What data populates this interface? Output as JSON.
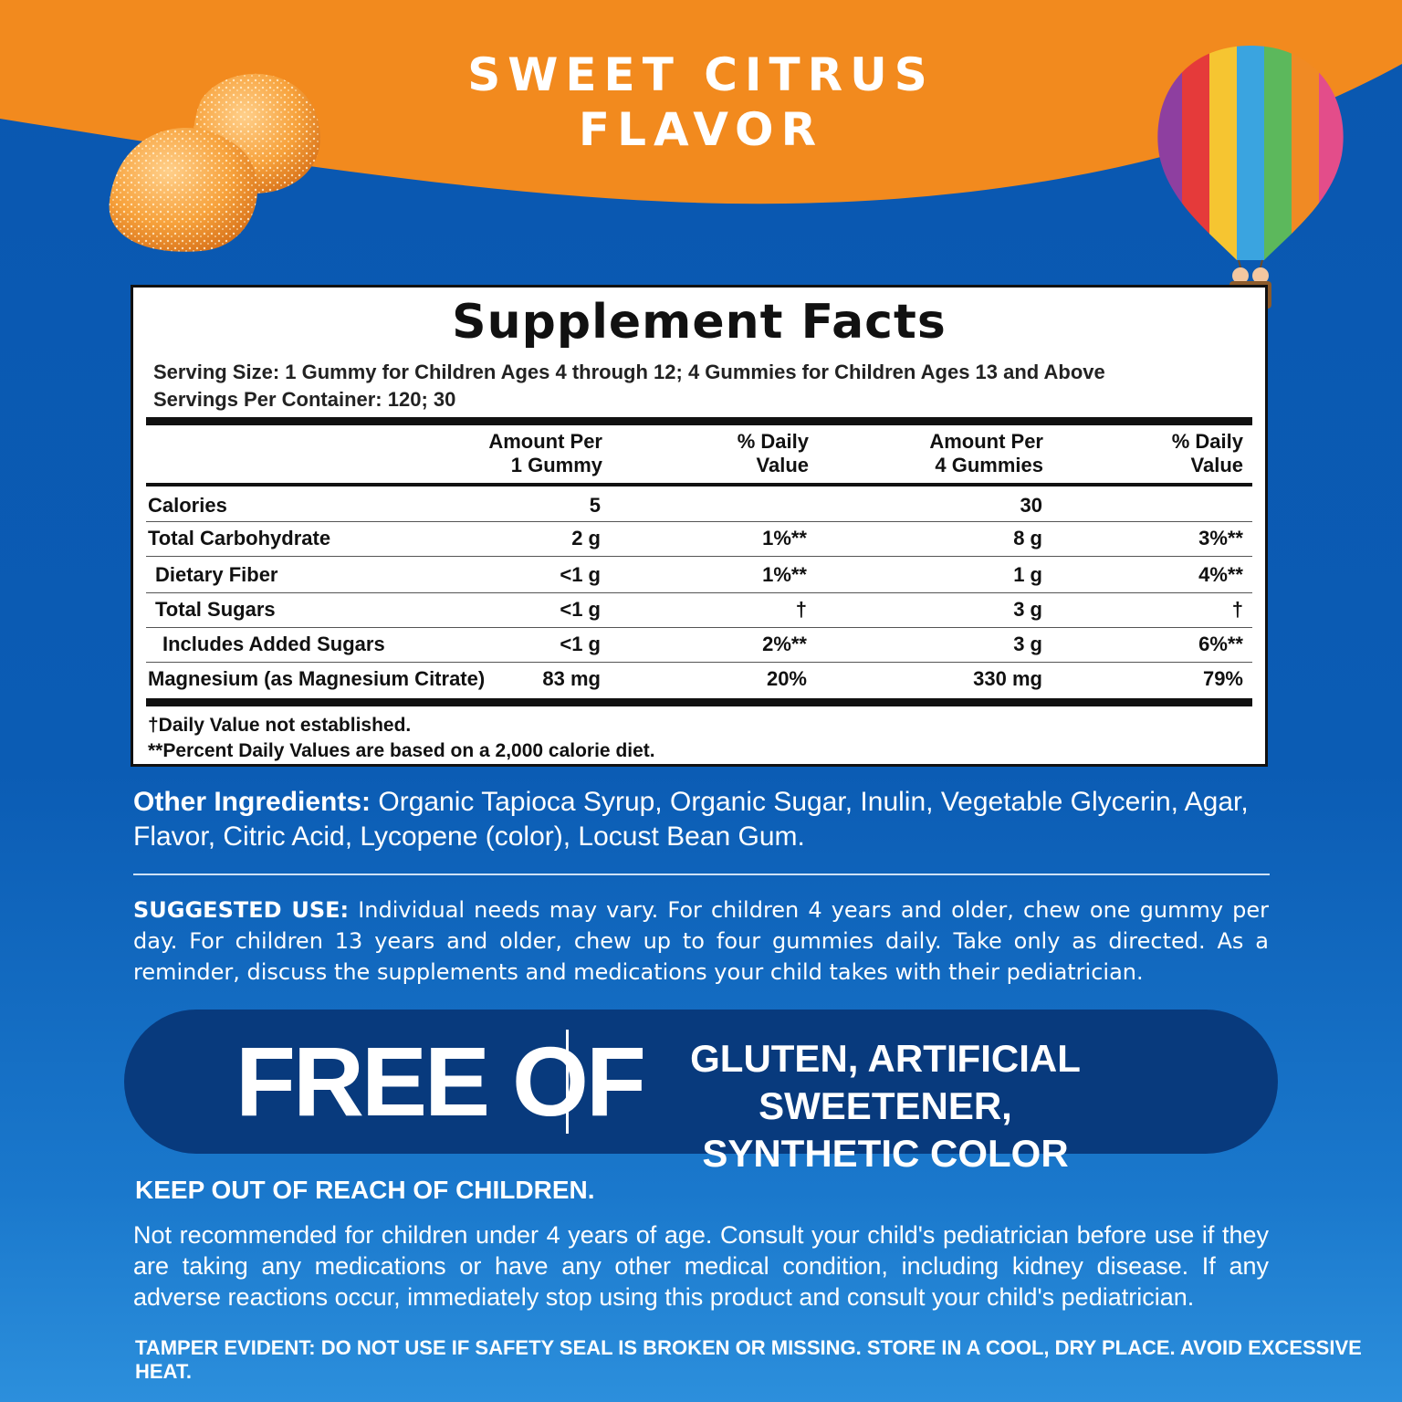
{
  "header": {
    "flavor_line1": "SWEET CITRUS",
    "flavor_line2": "FLAVOR"
  },
  "colors": {
    "orange": "#f28a1e",
    "blue": "#0a57b0",
    "pill": "#083a7d"
  },
  "supplement_facts": {
    "title": "Supplement Facts",
    "serving_size": "Serving Size: 1 Gummy for Children Ages 4 through 12; 4 Gummies for Children Ages 13 and Above",
    "servings_per_container": "Servings Per Container: 120; 30",
    "columns": {
      "amount1_line1": "Amount Per",
      "amount1_line2": "1 Gummy",
      "dv1_line1": "% Daily",
      "dv1_line2": "Value",
      "amount4_line1": "Amount Per",
      "amount4_line2": "4 Gummies",
      "dv4_line1": "% Daily",
      "dv4_line2": "Value"
    },
    "rows": [
      {
        "label": "Calories",
        "amt1": "5",
        "dv1": "",
        "amt4": "30",
        "dv4": ""
      },
      {
        "label": "Total Carbohydrate",
        "amt1": "2 g",
        "dv1": "1%**",
        "amt4": "8 g",
        "dv4": "3%**"
      },
      {
        "label": "Dietary Fiber",
        "amt1": "<1 g",
        "dv1": "1%**",
        "amt4": "1 g",
        "dv4": "4%**"
      },
      {
        "label": "Total Sugars",
        "amt1": "<1 g",
        "dv1": "†",
        "amt4": "3 g",
        "dv4": "†"
      },
      {
        "label": "Includes Added Sugars",
        "amt1": "<1 g",
        "dv1": "2%**",
        "amt4": "3 g",
        "dv4": "6%**"
      },
      {
        "label": "Magnesium (as Magnesium Citrate)",
        "amt1": "83 mg",
        "dv1": "20%",
        "amt4": "330 mg",
        "dv4": "79%"
      }
    ],
    "footnote1": "†Daily Value not established.",
    "footnote2": "**Percent Daily Values are based on a 2,000 calorie diet."
  },
  "ingredients": {
    "label": "Other Ingredients:",
    "text": " Organic Tapioca Syrup, Organic Sugar, Inulin, Vegetable Glycerin, Agar, Flavor, Citric Acid, Lycopene (color), Locust Bean Gum."
  },
  "suggested_use": {
    "label": "SUGGESTED USE:",
    "text": " Individual needs may vary. For children 4 years and older, chew one gummy per day. For children 13 years and older, chew up to four gummies daily. Take only as directed. As a reminder, discuss the supplements and medications your child takes with their pediatrician."
  },
  "free_of": {
    "title": "FREE OF",
    "line1": "GLUTEN, ARTIFICIAL SWEETENER,",
    "line2": "SYNTHETIC COLOR"
  },
  "warning": {
    "heading": "KEEP OUT OF REACH OF CHILDREN.",
    "text": "Not recommended for children under 4 years of age. Consult your child's pediatrician before use if they are taking any medications or have any other medical condition, including kidney disease. If any adverse reactions occur, immediately stop using this product and consult your child's pediatrician."
  },
  "tamper": "TAMPER EVIDENT: DO NOT USE IF SAFETY SEAL IS BROKEN OR MISSING. STORE IN A COOL, DRY PLACE. AVOID EXCESSIVE HEAT."
}
